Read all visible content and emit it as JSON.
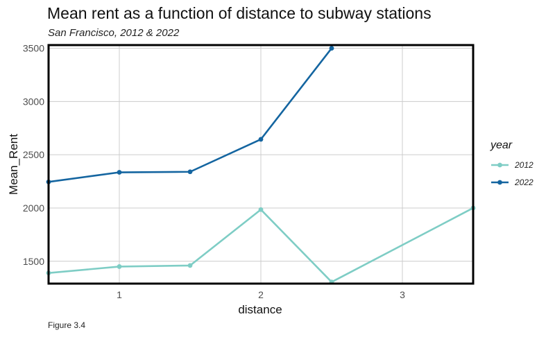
{
  "title": "Mean rent as a function of distance to subway stations",
  "subtitle": "San Francisco, 2012 & 2022",
  "caption": "Figure 3.4",
  "chart_data": {
    "type": "line",
    "xlabel": "distance",
    "ylabel": "Mean_Rent",
    "xlim": [
      0.5,
      3.5
    ],
    "ylim": [
      1290,
      3530
    ],
    "x_ticks": [
      "1",
      "2",
      "3"
    ],
    "y_ticks": [
      "1500",
      "2000",
      "2500",
      "3000",
      "3500"
    ],
    "grid": true,
    "legend_title": "year",
    "legend_position": "right",
    "series": [
      {
        "name": "2012",
        "color": "#7ecdc5",
        "x": [
          0.5,
          1.0,
          1.5,
          2.0,
          2.5,
          3.5
        ],
        "y": [
          1390,
          1450,
          1460,
          1985,
          1305,
          2000
        ]
      },
      {
        "name": "2022",
        "color": "#1465a0",
        "x": [
          0.5,
          1.0,
          1.5,
          2.0,
          2.5
        ],
        "y": [
          2245,
          2335,
          2340,
          2645,
          3500
        ]
      }
    ]
  }
}
